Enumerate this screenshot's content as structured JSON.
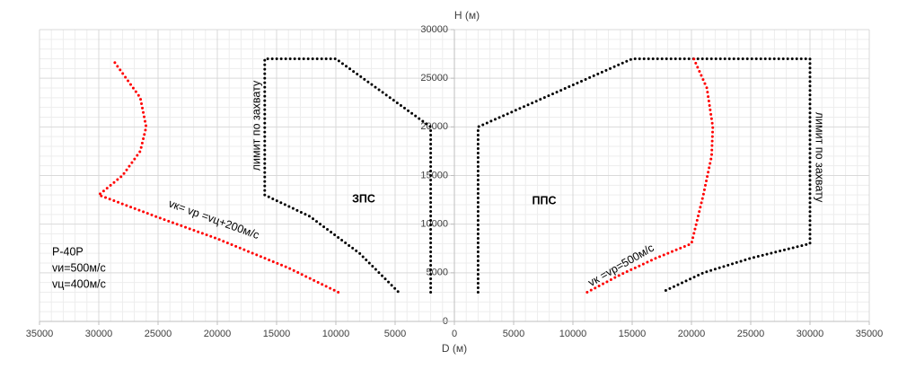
{
  "chart_data": {
    "type": "line",
    "x_label": "D (м)",
    "y_label": "H (м)",
    "xlim": [
      -35000,
      35000
    ],
    "ylim": [
      0,
      30000
    ],
    "xticks": [
      {
        "value": -35000,
        "label": "35000"
      },
      {
        "value": -30000,
        "label": "30000"
      },
      {
        "value": -25000,
        "label": "25000"
      },
      {
        "value": -20000,
        "label": "20000"
      },
      {
        "value": -15000,
        "label": "15000"
      },
      {
        "value": -10000,
        "label": "10000"
      },
      {
        "value": -5000,
        "label": "5000"
      },
      0,
      5000,
      10000,
      15000,
      20000,
      25000,
      30000,
      35000
    ],
    "yticks": [
      0,
      5000,
      10000,
      15000,
      20000,
      25000,
      30000
    ],
    "grid": true,
    "minor_grid": true,
    "series": [
      {
        "color": "#000000",
        "x": [
          -2000,
          -2000,
          -10000,
          -16000,
          -16000,
          -12200,
          -8000,
          -4700
        ],
        "values": [
          3000,
          20000,
          27000,
          27000,
          13000,
          10800,
          7000,
          3000
        ]
      },
      {
        "color": "#ff0000",
        "x": [
          -9800,
          -14000,
          -20000,
          -25000,
          -30000,
          -28000,
          -26500,
          -26000,
          -26500,
          -28700
        ],
        "values": [
          3000,
          5500,
          8500,
          10700,
          13000,
          15000,
          17500,
          20000,
          23000,
          26700
        ]
      },
      {
        "color": "#000000",
        "x": [
          2000,
          2000,
          15000,
          30000,
          30000,
          25000,
          21000,
          17500
        ],
        "values": [
          3000,
          20000,
          27000,
          27000,
          8000,
          6500,
          5000,
          3000
        ]
      },
      {
        "color": "#ff0000",
        "x": [
          11200,
          14000,
          17000,
          20000,
          21000,
          21700,
          21800,
          21300,
          20200
        ],
        "values": [
          3000,
          4800,
          6500,
          8000,
          13000,
          17000,
          20000,
          24000,
          27000
        ]
      }
    ],
    "annotations": [
      "лимит по захвату",
      "лимит по захвату",
      "ЗПС",
      "ППС",
      "vк= vр =vц+200м/с",
      "vк =vр=500м/с",
      "Р-40Р",
      "vи=500м/с",
      "vц=400м/с"
    ]
  }
}
